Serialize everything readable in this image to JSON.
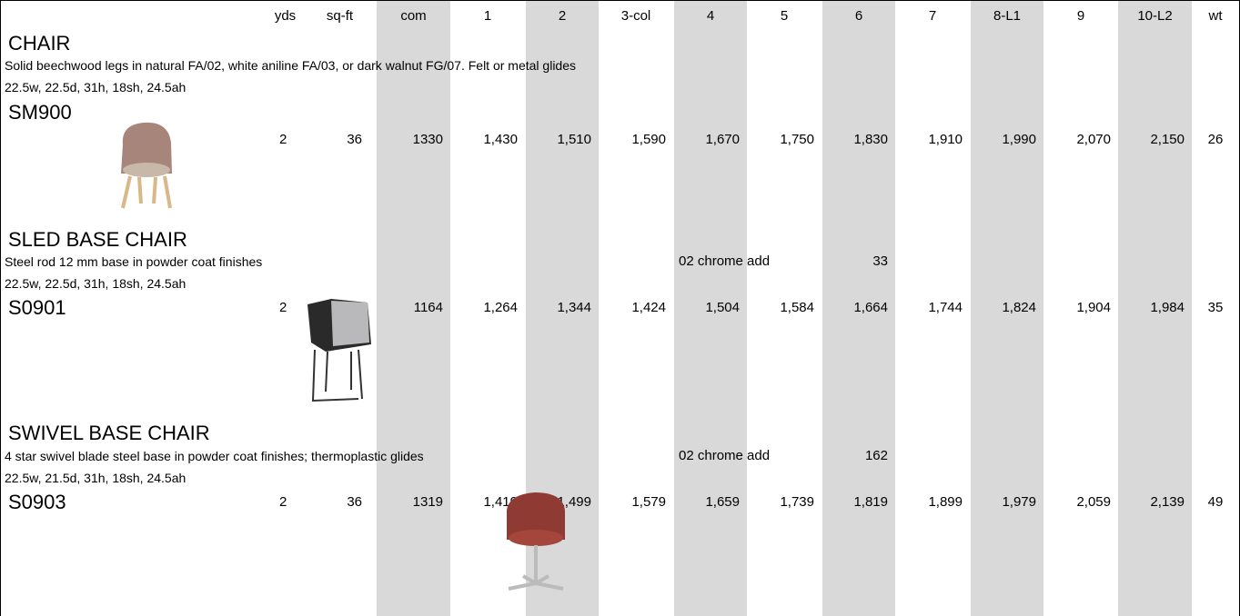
{
  "header": {
    "columns": [
      "yds",
      "sq-ft",
      "com",
      "1",
      "2",
      "3-col",
      "4",
      "5",
      "6",
      "7",
      "8-L1",
      "9",
      "10-L2",
      "wt"
    ]
  },
  "sections": [
    {
      "title": "CHAIR",
      "description": "Solid beechwood legs in natural FA/02, white aniline FA/03,  or dark walnut FG/07. Felt or metal glides",
      "dimensions": "22.5w, 22.5d, 31h, 18sh, 24.5ah",
      "model": "SM900",
      "values": [
        "2",
        "36",
        "1330",
        "1,430",
        "1,510",
        "1,590",
        "1,670",
        "1,750",
        "1,830",
        "1,910",
        "1,990",
        "2,070",
        "2,150",
        "26"
      ]
    },
    {
      "title": "SLED BASE CHAIR",
      "description": "Steel rod 12 mm base in powder coat finishes",
      "dimensions": "22.5w, 22.5d, 31h, 18sh, 24.5ah",
      "model": "S0901",
      "note": {
        "label": "02 chrome add",
        "value": "33"
      },
      "values": [
        "2",
        "36",
        "1164",
        "1,264",
        "1,344",
        "1,424",
        "1,504",
        "1,584",
        "1,664",
        "1,744",
        "1,824",
        "1,904",
        "1,984",
        "35"
      ]
    },
    {
      "title": "SWIVEL BASE CHAIR",
      "description": "4 star swivel blade steel base in powder coat finishes; thermoplastic glides",
      "dimensions": "22.5w, 21.5d, 31h, 18sh, 24.5ah",
      "model": "S0903",
      "note": {
        "label": "02 chrome add",
        "value": "162"
      },
      "values": [
        "2",
        "36",
        "1319",
        "1,419",
        "1,499",
        "1,579",
        "1,659",
        "1,739",
        "1,819",
        "1,899",
        "1,979",
        "2,059",
        "2,139",
        "49"
      ]
    }
  ]
}
